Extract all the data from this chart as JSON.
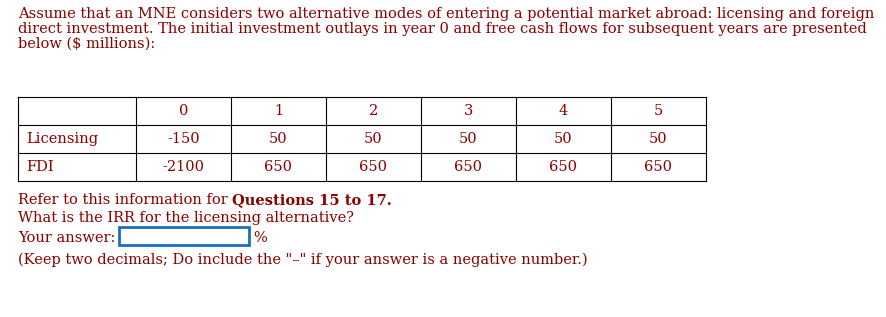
{
  "paragraph_lines": [
    "Assume that an MNE considers two alternative modes of entering a potential market abroad: licensing and foreign",
    "direct investment. The initial investment outlays in year 0 and free cash flows for subsequent years are presented",
    "below ($ millions):"
  ],
  "table_headers": [
    "",
    "0",
    "1",
    "2",
    "3",
    "4",
    "5"
  ],
  "table_rows": [
    [
      "Licensing",
      "-150",
      "50",
      "50",
      "50",
      "50",
      "50"
    ],
    [
      "FDI",
      "-2100",
      "650",
      "650",
      "650",
      "650",
      "650"
    ]
  ],
  "refer_text_normal": "Refer to this information for ",
  "refer_text_bold": "Questions 15 to 17.",
  "question": "What is the IRR for the licensing alternative?",
  "answer_label": "Your answer:",
  "answer_suffix": "%",
  "footnote": "(Keep two decimals; Do include the \"–\" if your answer is a negative number.)",
  "text_color": "#8B0000",
  "bg_color": "#ffffff",
  "input_box_color": "#1a6fbe",
  "font_size": 10.5
}
